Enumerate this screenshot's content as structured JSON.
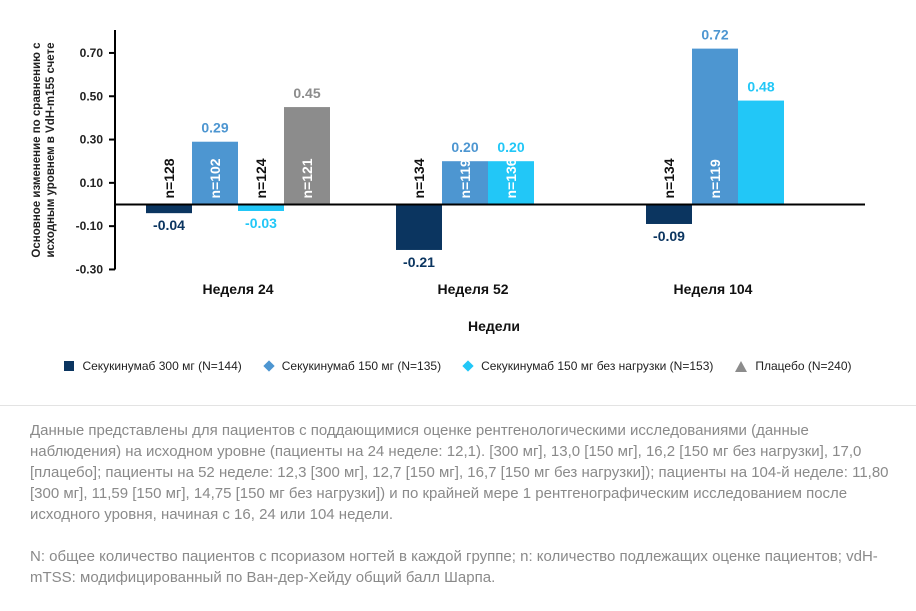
{
  "chart_data": {
    "type": "bar",
    "ylabel_lines": [
      "Основное изменение по сравнению с",
      "исходным уровнем в VdH-m155 счете"
    ],
    "xlabel": "Недели",
    "categories": [
      "Неделя 24",
      "Неделя 52",
      "Неделя 104"
    ],
    "ylim": [
      -0.3,
      0.8
    ],
    "yticks": [
      0.7,
      0.5,
      0.3,
      0.1,
      -0.1,
      -0.3
    ],
    "ytick_labels": [
      "0.70",
      "0.50",
      "0.30",
      "0.10",
      "-0.10",
      "-0.30"
    ],
    "grid": false,
    "legend_placement": "bottom",
    "series": [
      {
        "name": "Секукинумаб 300 мг (N=144)",
        "color": "#0b3560",
        "symbol": "square",
        "values": [
          -0.04,
          -0.21,
          -0.09
        ],
        "labels": [
          "-0.04",
          "-0.21",
          "-0.09"
        ],
        "n": [
          "n=128",
          "n=134",
          "n=134"
        ]
      },
      {
        "name": "Секукинумаб 150 мг (N=135)",
        "color": "#4d96d1",
        "symbol": "diamond",
        "values": [
          0.29,
          0.2,
          0.72
        ],
        "labels": [
          "0.29",
          "0.20",
          "0.72"
        ],
        "n": [
          "n=102",
          "n=119",
          "n=119"
        ]
      },
      {
        "name": "Секукинумаб 150 мг без нагрузки (N=153)",
        "color": "#22c7f7",
        "symbol": "diamond",
        "values": [
          -0.03,
          0.2,
          0.48
        ],
        "labels": [
          "-0.03",
          "0.20",
          "0.48"
        ],
        "n": [
          "n=124",
          "n=136",
          null
        ]
      },
      {
        "name": "Плацебо (N=240)",
        "color": "#8c8c8c",
        "symbol": "triangle",
        "values": [
          0.45,
          null,
          null
        ],
        "labels": [
          "0.45",
          null,
          null
        ],
        "n": [
          "n=121",
          null,
          null
        ]
      }
    ]
  },
  "footnotes": [
    "Данные представлены для пациентов с поддающимися оценке рентгенологическими исследованиями (данные наблюдения) на исходном уровне (пациенты на 24 неделе: 12,1). [300 мг], 13,0 [150 мг], 16,2 [150 мг без нагрузки], 17,0 [плацебо]; пациенты на 52 неделе: 12,3 [300 мг], 12,7 [150 мг], 16,7 [150 мг без нагрузки]); пациенты на 104-й неделе: 11,80 [300 мг], 11,59 [150 мг], 14,75 [150 мг без нагрузки]) и по крайней мере 1 рентгенографическим исследованием после исходного уровня, начиная с 16, 24 или 104 недели.",
    "N: общее количество пациентов с псориазом ногтей в каждой группе; n: количество подлежащих оценке пациентов; vdH-mTSS: модифицированный по Ван-дер-Хейду общий балл Шарпа."
  ]
}
